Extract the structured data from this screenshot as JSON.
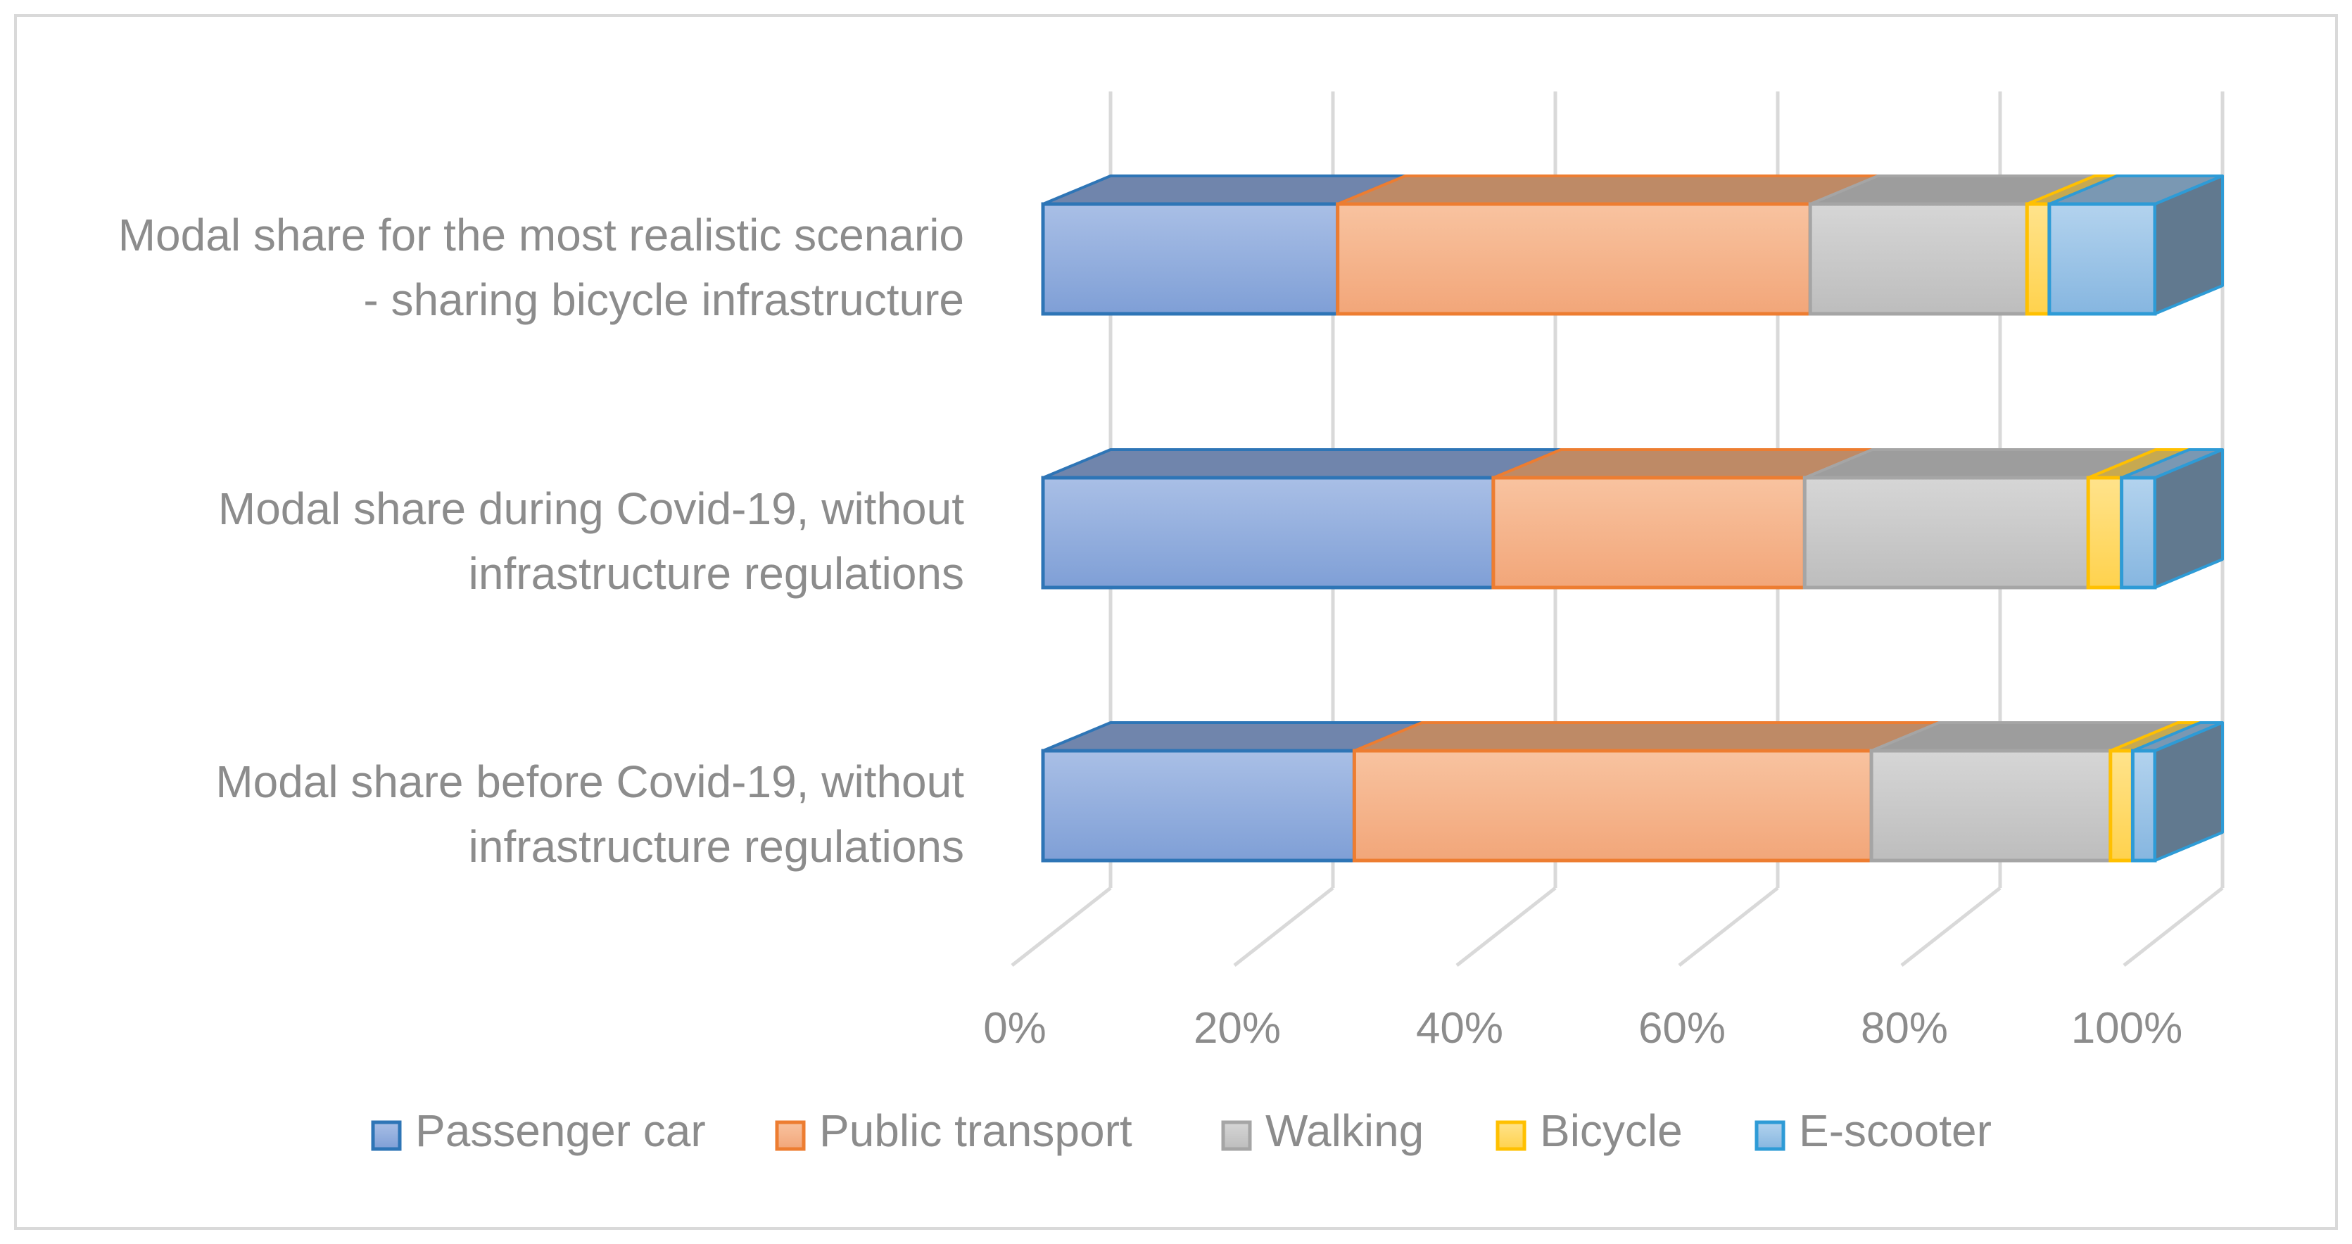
{
  "chart_data": {
    "type": "bar",
    "stacked": true,
    "percent_stacked": true,
    "orientation": "horizontal",
    "three_d": true,
    "title": "",
    "xlabel": "",
    "ylabel": "",
    "xlim": [
      0,
      100
    ],
    "x_ticks": [
      "0%",
      "20%",
      "40%",
      "60%",
      "80%",
      "100%"
    ],
    "categories": [
      {
        "line1": "Modal share for the most realistic scenario",
        "line2": "- sharing bicycle infrastructure"
      },
      {
        "line1": "Modal share during Covid-19, without",
        "line2": "infrastructure regulations"
      },
      {
        "line1": "Modal share before Covid-19, without",
        "line2": "infrastructure regulations"
      }
    ],
    "series": [
      {
        "name": "Passenger car",
        "color": "#8faadc",
        "border": "#2e75b6",
        "values": [
          26.5,
          40.5,
          28.0
        ]
      },
      {
        "name": "Public transport",
        "color": "#f4b183",
        "border": "#ed7d31",
        "values": [
          42.5,
          28.0,
          46.5
        ]
      },
      {
        "name": "Walking",
        "color": "#c9c9c9",
        "border": "#a5a5a5",
        "values": [
          19.5,
          25.5,
          21.5
        ]
      },
      {
        "name": "Bicycle",
        "color": "#ffd966",
        "border": "#ffc000",
        "values": [
          2.0,
          3.0,
          2.0
        ]
      },
      {
        "name": "E-scooter",
        "color": "#9dc3e6",
        "border": "#2e9bd6",
        "values": [
          9.5,
          3.0,
          2.0
        ]
      }
    ],
    "legend_position": "bottom",
    "grid": true
  }
}
